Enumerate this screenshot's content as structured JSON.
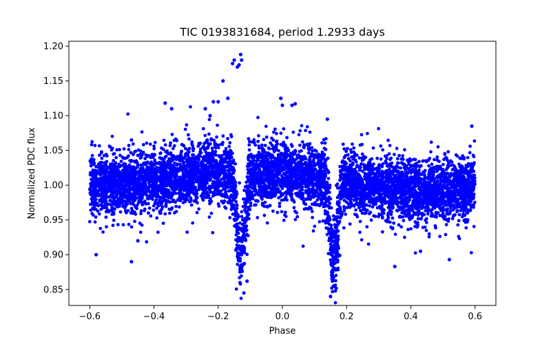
{
  "chart_data": {
    "type": "scatter",
    "title": "TIC 0193831684, period 1.2933 days",
    "xlabel": "Phase",
    "ylabel": "Normalized PDC flux",
    "xlim": [
      -0.665,
      0.665
    ],
    "ylim": [
      0.827,
      1.207
    ],
    "xticks": [
      -0.6,
      -0.4,
      -0.2,
      0.0,
      0.2,
      0.4,
      0.6
    ],
    "xtick_labels": [
      "−0.6",
      "−0.4",
      "−0.2",
      "0.0",
      "0.2",
      "0.4",
      "0.6"
    ],
    "yticks": [
      0.85,
      0.9,
      0.95,
      1.0,
      1.05,
      1.1,
      1.15,
      1.2
    ],
    "ytick_labels": [
      "0.85",
      "0.90",
      "0.95",
      "1.00",
      "1.05",
      "1.10",
      "1.15",
      "1.20"
    ],
    "grid": false,
    "marker_color": "#0000ff",
    "series": [
      {
        "name": "PDC flux",
        "summary": {
          "phase_range": [
            -0.6,
            0.6
          ],
          "baseline_flux": 1.0,
          "scatter_band": [
            0.94,
            1.06
          ],
          "primary_eclipse": {
            "phase": -0.13,
            "min_flux": 0.845
          },
          "secondary_eclipse": {
            "phase": 0.16,
            "min_flux": 0.84
          },
          "flare_peak": {
            "phase": -0.13,
            "flux": 1.188
          }
        },
        "highlighted_points": [
          {
            "x": -0.13,
            "y": 1.188
          },
          {
            "x": -0.127,
            "y": 1.18
          },
          {
            "x": -0.14,
            "y": 1.17
          },
          {
            "x": -0.135,
            "y": 1.173
          },
          {
            "x": -0.15,
            "y": 1.18
          },
          {
            "x": -0.155,
            "y": 1.175
          },
          {
            "x": -0.17,
            "y": 1.125
          },
          {
            "x": -0.185,
            "y": 1.15
          },
          {
            "x": -0.2,
            "y": 1.12
          },
          {
            "x": -0.215,
            "y": 1.12
          },
          {
            "x": -0.225,
            "y": 1.1
          },
          {
            "x": -0.24,
            "y": 1.11
          },
          {
            "x": -0.345,
            "y": 1.11
          },
          {
            "x": -0.365,
            "y": 1.118
          },
          {
            "x": -0.005,
            "y": 1.125
          },
          {
            "x": 0.0,
            "y": 1.115
          },
          {
            "x": 0.03,
            "y": 1.115
          },
          {
            "x": 0.04,
            "y": 1.117
          },
          {
            "x": -0.45,
            "y": 0.92
          },
          {
            "x": -0.47,
            "y": 0.89
          },
          {
            "x": -0.58,
            "y": 0.9
          },
          {
            "x": 0.35,
            "y": 0.883
          },
          {
            "x": 0.43,
            "y": 0.905
          },
          {
            "x": 0.52,
            "y": 0.893
          },
          {
            "x": -0.12,
            "y": 0.845
          },
          {
            "x": -0.11,
            "y": 0.862
          },
          {
            "x": 0.15,
            "y": 0.84
          },
          {
            "x": 0.16,
            "y": 0.855
          },
          {
            "x": 0.165,
            "y": 0.848
          },
          {
            "x": 0.59,
            "y": 1.085
          },
          {
            "x": -0.47,
            "y": 1.065
          },
          {
            "x": 0.14,
            "y": 1.095
          }
        ]
      }
    ]
  }
}
